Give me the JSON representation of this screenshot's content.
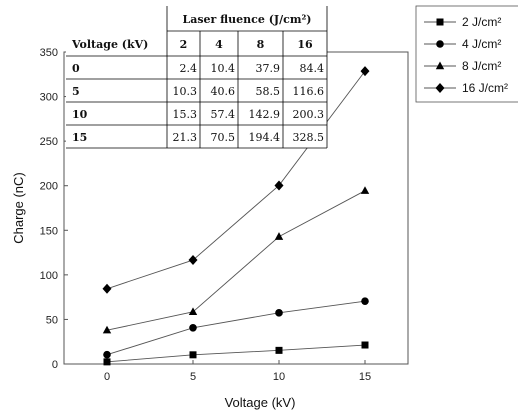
{
  "chart_data": {
    "type": "line",
    "xlabel": "Voltage (kV)",
    "ylabel": "Charge (nC)",
    "x": [
      0,
      5,
      10,
      15
    ],
    "xticks": [
      "0",
      "5",
      "10",
      "15"
    ],
    "xlim": [
      -2.5,
      17.5
    ],
    "yticks": [
      "0",
      "50",
      "100",
      "150",
      "200",
      "250",
      "300",
      "350"
    ],
    "ylim": [
      0,
      350
    ],
    "grid": false,
    "legend_position": "top-right",
    "series": [
      {
        "name": "2 J/cm²",
        "marker": "square",
        "values": [
          2.4,
          10.3,
          15.3,
          21.3
        ]
      },
      {
        "name": "4 J/cm²",
        "marker": "circle",
        "values": [
          10.4,
          40.6,
          57.4,
          70.5
        ]
      },
      {
        "name": "8 J/cm²",
        "marker": "triangle",
        "values": [
          37.9,
          58.5,
          142.9,
          194.4
        ]
      },
      {
        "name": "16 J/cm²",
        "marker": "diamond",
        "values": [
          84.4,
          116.6,
          200.3,
          328.5
        ]
      }
    ],
    "table": {
      "group_header": "Laser fluence (J/cm²)",
      "row_header": "Voltage (kV)",
      "columns": [
        "2",
        "4",
        "8",
        "16"
      ],
      "rows": [
        {
          "label": "0",
          "cells": [
            "2.4",
            "10.4",
            "37.9",
            "84.4"
          ]
        },
        {
          "label": "5",
          "cells": [
            "10.3",
            "40.6",
            "58.5",
            "116.6"
          ]
        },
        {
          "label": "10",
          "cells": [
            "15.3",
            "57.4",
            "142.9",
            "200.3"
          ]
        },
        {
          "label": "15",
          "cells": [
            "21.3",
            "70.5",
            "194.4",
            "328.5"
          ]
        }
      ]
    }
  }
}
